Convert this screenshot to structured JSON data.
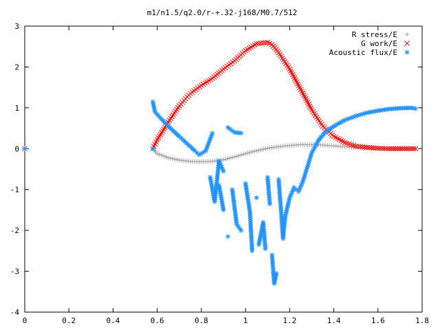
{
  "chart_data": {
    "type": "scatter",
    "title": "m1/n1.5/q2.0/r-+.32-j168/M0.7/512",
    "xlabel": "",
    "ylabel": "",
    "xlim": [
      0,
      1.8
    ],
    "ylim": [
      -4,
      3
    ],
    "x_ticks": [
      "0",
      "0.2",
      "0.4",
      "0.6",
      "0.8",
      "1",
      "1.2",
      "1.4",
      "1.6",
      "1.8"
    ],
    "y_ticks": [
      "3",
      "2",
      "1",
      "0",
      "-1",
      "-2",
      "-3",
      "-4"
    ],
    "grid": false,
    "legend_position": "top-right",
    "series": [
      {
        "name": "R stress/E",
        "color": "#a0a0a0",
        "marker": "plus",
        "points": [
          [
            0.0,
            0.0
          ],
          [
            0.58,
            0.0
          ],
          [
            0.6,
            -0.12
          ],
          [
            0.65,
            -0.22
          ],
          [
            0.7,
            -0.28
          ],
          [
            0.75,
            -0.31
          ],
          [
            0.8,
            -0.32
          ],
          [
            0.85,
            -0.31
          ],
          [
            0.9,
            -0.27
          ],
          [
            0.95,
            -0.2
          ],
          [
            1.0,
            -0.12
          ],
          [
            1.05,
            -0.05
          ],
          [
            1.1,
            0.01
          ],
          [
            1.15,
            0.05
          ],
          [
            1.2,
            0.08
          ],
          [
            1.25,
            0.1
          ],
          [
            1.3,
            0.1
          ],
          [
            1.35,
            0.09
          ],
          [
            1.4,
            0.07
          ],
          [
            1.45,
            0.05
          ],
          [
            1.5,
            0.03
          ],
          [
            1.55,
            0.02
          ],
          [
            1.6,
            0.01
          ],
          [
            1.65,
            0.0
          ],
          [
            1.7,
            0.0
          ],
          [
            1.77,
            0.0
          ]
        ]
      },
      {
        "name": "G work/E",
        "color": "#ff0000",
        "marker": "x",
        "points": [
          [
            0.0,
            0.0
          ],
          [
            0.58,
            0.0
          ],
          [
            0.6,
            0.22
          ],
          [
            0.65,
            0.65
          ],
          [
            0.7,
            1.05
          ],
          [
            0.75,
            1.35
          ],
          [
            0.8,
            1.55
          ],
          [
            0.85,
            1.72
          ],
          [
            0.9,
            1.95
          ],
          [
            0.95,
            2.15
          ],
          [
            1.0,
            2.4
          ],
          [
            1.05,
            2.57
          ],
          [
            1.1,
            2.6
          ],
          [
            1.12,
            2.55
          ],
          [
            1.15,
            2.35
          ],
          [
            1.2,
            1.95
          ],
          [
            1.25,
            1.45
          ],
          [
            1.3,
            0.95
          ],
          [
            1.35,
            0.55
          ],
          [
            1.4,
            0.3
          ],
          [
            1.45,
            0.15
          ],
          [
            1.5,
            0.06
          ],
          [
            1.55,
            0.03
          ],
          [
            1.6,
            0.01
          ],
          [
            1.65,
            0.0
          ],
          [
            1.7,
            0.0
          ],
          [
            1.77,
            0.0
          ]
        ]
      },
      {
        "name": "Acoustic flux/E",
        "color": "#1e90ff",
        "marker": "star",
        "points": [
          [
            0.0,
            0.0
          ],
          [
            0.58,
            0.0
          ],
          [
            0.58,
            1.15
          ],
          [
            0.59,
            0.9
          ],
          [
            0.62,
            0.72
          ],
          [
            0.65,
            0.55
          ],
          [
            0.7,
            0.3
          ],
          [
            0.74,
            0.1
          ],
          [
            0.77,
            -0.05
          ],
          [
            0.79,
            -0.15
          ],
          [
            0.82,
            -0.05
          ],
          [
            0.85,
            0.38
          ],
          [
            0.88,
            -0.9
          ],
          [
            0.9,
            -1.5
          ],
          [
            0.92,
            0.52
          ],
          [
            0.95,
            0.4
          ],
          [
            0.98,
            0.38
          ],
          [
            0.84,
            -0.7
          ],
          [
            0.86,
            -1.3
          ],
          [
            0.88,
            -0.3
          ],
          [
            0.9,
            -0.55
          ],
          [
            0.92,
            -2.15
          ],
          [
            0.94,
            -1.0
          ],
          [
            0.96,
            -1.85
          ],
          [
            0.98,
            -2.0
          ],
          [
            1.0,
            -0.85
          ],
          [
            1.02,
            -1.55
          ],
          [
            1.03,
            -2.5
          ],
          [
            1.05,
            -1.2
          ],
          [
            1.06,
            -2.35
          ],
          [
            1.08,
            -1.8
          ],
          [
            1.09,
            -2.45
          ],
          [
            1.1,
            -0.7
          ],
          [
            1.11,
            -1.35
          ],
          [
            1.12,
            -2.6
          ],
          [
            1.13,
            -3.3
          ],
          [
            1.14,
            -3.05
          ],
          [
            1.15,
            -0.75
          ],
          [
            1.16,
            -1.45
          ],
          [
            1.17,
            -2.2
          ],
          [
            1.18,
            -1.65
          ],
          [
            1.2,
            -1.2
          ],
          [
            1.22,
            -0.95
          ],
          [
            1.24,
            -1.05
          ],
          [
            1.26,
            -0.8
          ],
          [
            1.28,
            -0.45
          ],
          [
            1.3,
            -0.1
          ],
          [
            1.33,
            0.2
          ],
          [
            1.36,
            0.4
          ],
          [
            1.4,
            0.55
          ],
          [
            1.45,
            0.7
          ],
          [
            1.5,
            0.8
          ],
          [
            1.55,
            0.88
          ],
          [
            1.6,
            0.93
          ],
          [
            1.65,
            0.97
          ],
          [
            1.7,
            0.99
          ],
          [
            1.75,
            1.0
          ],
          [
            1.77,
            0.98
          ]
        ]
      }
    ]
  }
}
